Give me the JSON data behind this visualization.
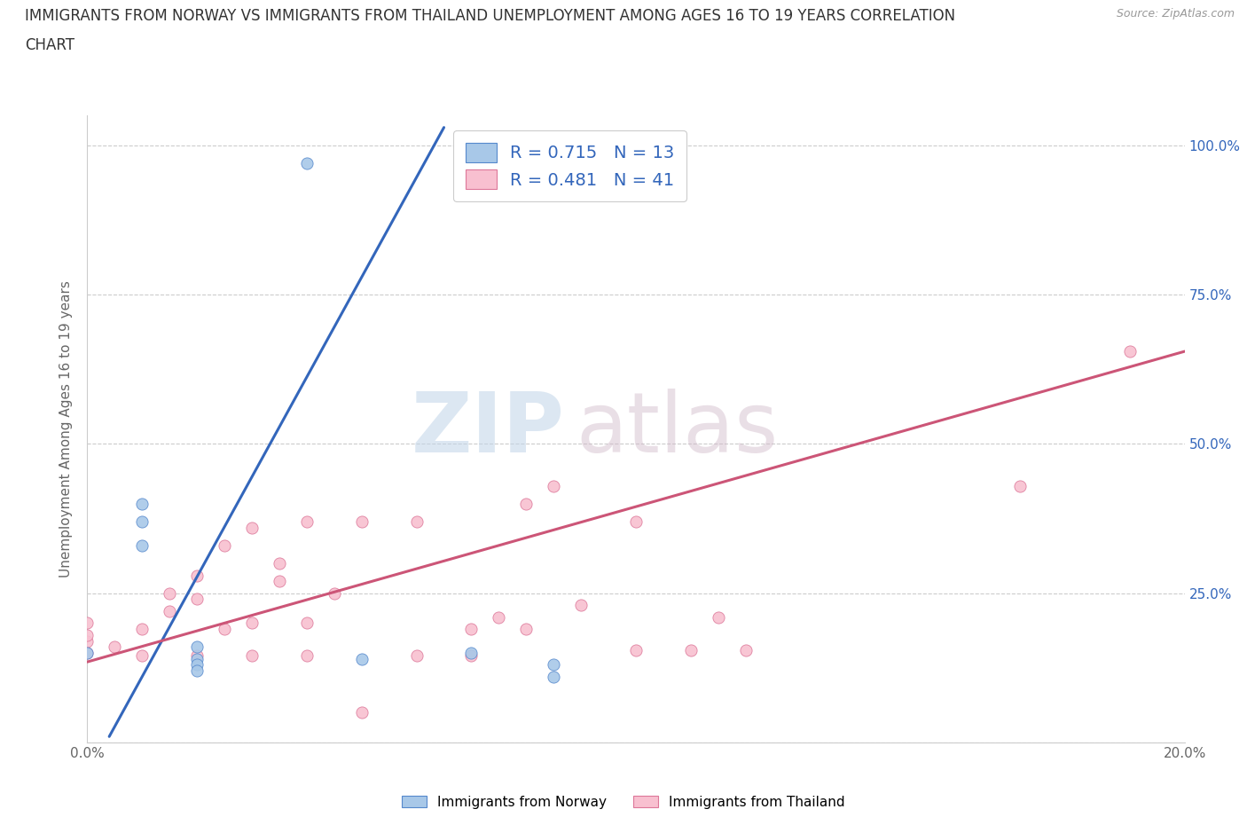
{
  "title_line1": "IMMIGRANTS FROM NORWAY VS IMMIGRANTS FROM THAILAND UNEMPLOYMENT AMONG AGES 16 TO 19 YEARS CORRELATION",
  "title_line2": "CHART",
  "source": "Source: ZipAtlas.com",
  "ylabel": "Unemployment Among Ages 16 to 19 years",
  "xlim": [
    0.0,
    0.2
  ],
  "ylim": [
    0.0,
    1.05
  ],
  "xticks": [
    0.0,
    0.05,
    0.1,
    0.15,
    0.2
  ],
  "xticklabels": [
    "0.0%",
    "",
    "",
    "",
    "20.0%"
  ],
  "ytick_positions": [
    0.0,
    0.25,
    0.5,
    0.75,
    1.0
  ],
  "yticklabels_right": [
    "",
    "25.0%",
    "50.0%",
    "75.0%",
    "100.0%"
  ],
  "watermark_zip": "ZIP",
  "watermark_atlas": "atlas",
  "norway_color": "#a8c8e8",
  "norway_edge_color": "#5588cc",
  "norway_line_color": "#3366bb",
  "thailand_color": "#f8c0d0",
  "thailand_edge_color": "#dd7799",
  "thailand_line_color": "#cc5577",
  "norway_R": 0.715,
  "norway_N": 13,
  "thailand_R": 0.481,
  "thailand_N": 41,
  "legend_text_color": "#3366bb",
  "norway_scatter_x": [
    0.04,
    0.0,
    0.01,
    0.01,
    0.01,
    0.02,
    0.02,
    0.02,
    0.02,
    0.05,
    0.07,
    0.085,
    0.085
  ],
  "norway_scatter_y": [
    0.97,
    0.15,
    0.4,
    0.37,
    0.33,
    0.16,
    0.14,
    0.13,
    0.12,
    0.14,
    0.15,
    0.13,
    0.11
  ],
  "thailand_scatter_x": [
    0.0,
    0.0,
    0.0,
    0.0,
    0.005,
    0.01,
    0.01,
    0.015,
    0.015,
    0.02,
    0.02,
    0.02,
    0.025,
    0.025,
    0.03,
    0.03,
    0.03,
    0.035,
    0.035,
    0.04,
    0.04,
    0.04,
    0.045,
    0.05,
    0.05,
    0.06,
    0.06,
    0.07,
    0.07,
    0.075,
    0.08,
    0.08,
    0.085,
    0.09,
    0.1,
    0.1,
    0.11,
    0.115,
    0.12,
    0.17,
    0.19
  ],
  "thailand_scatter_y": [
    0.15,
    0.17,
    0.18,
    0.2,
    0.16,
    0.145,
    0.19,
    0.22,
    0.25,
    0.145,
    0.24,
    0.28,
    0.19,
    0.33,
    0.145,
    0.2,
    0.36,
    0.27,
    0.3,
    0.145,
    0.2,
    0.37,
    0.25,
    0.05,
    0.37,
    0.145,
    0.37,
    0.145,
    0.19,
    0.21,
    0.19,
    0.4,
    0.43,
    0.23,
    0.155,
    0.37,
    0.155,
    0.21,
    0.155,
    0.43,
    0.655
  ],
  "norway_trendline_x": [
    0.004,
    0.065
  ],
  "norway_trendline_y": [
    0.01,
    1.03
  ],
  "thailand_trendline_x": [
    0.0,
    0.2
  ],
  "thailand_trendline_y": [
    0.135,
    0.655
  ],
  "background_color": "#ffffff",
  "grid_color": "#cccccc",
  "title_fontsize": 12,
  "axis_fontsize": 11,
  "scatter_size": 90
}
